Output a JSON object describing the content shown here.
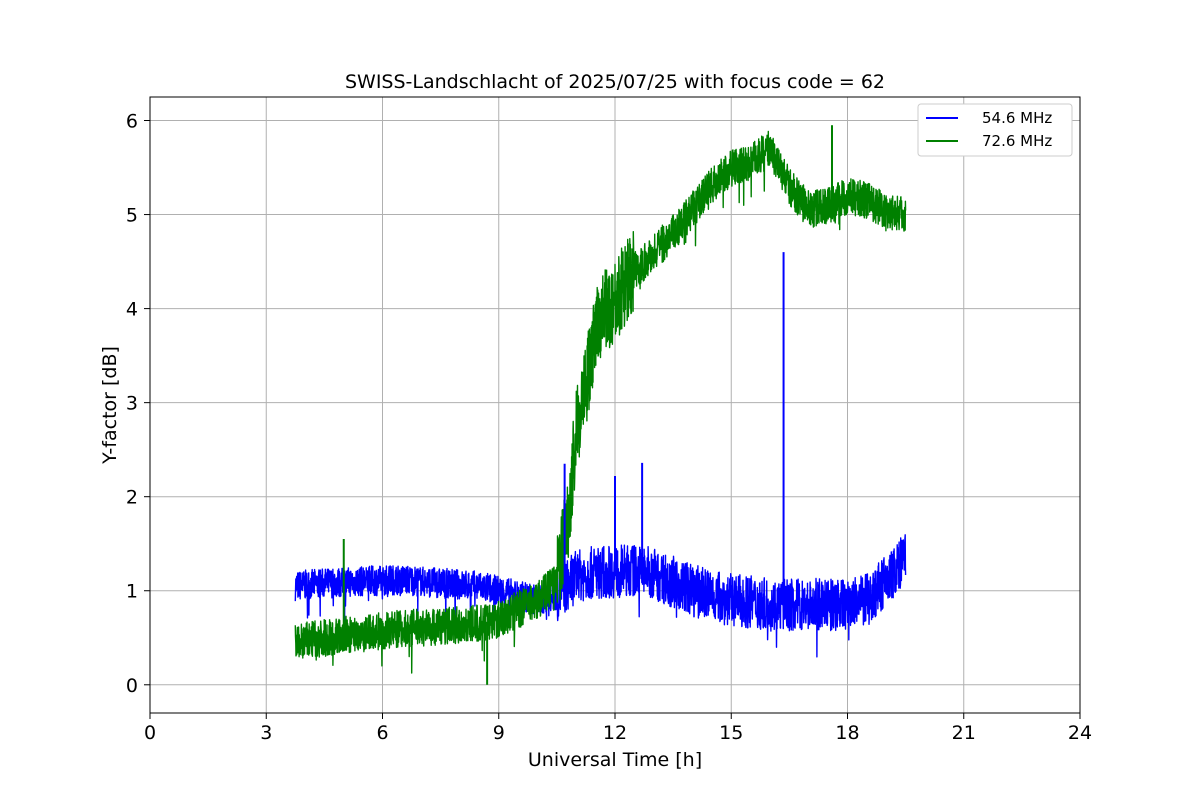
{
  "chart_data": {
    "type": "line",
    "title": "SWISS-Landschlacht of 2025/07/25 with focus code = 62",
    "xlabel": "Universal Time [h]",
    "ylabel": "Y-factor [dB]",
    "xlim": [
      0,
      24
    ],
    "ylim": [
      -0.3,
      6.25
    ],
    "xticks": [
      0,
      3,
      6,
      9,
      12,
      15,
      18,
      21,
      24
    ],
    "yticks": [
      0,
      1,
      2,
      3,
      4,
      5,
      6
    ],
    "xtick_labels": [
      "0",
      "3",
      "6",
      "9",
      "12",
      "15",
      "18",
      "21",
      "24"
    ],
    "ytick_labels": [
      "0",
      "1",
      "2",
      "3",
      "4",
      "5",
      "6"
    ],
    "grid": true,
    "legend_position": "top-right",
    "series": [
      {
        "name": "54.6 MHz",
        "color": "#0000ff",
        "x": [
          3.75,
          4.5,
          5.5,
          6.5,
          7.5,
          8.5,
          9.0,
          9.5,
          10.0,
          10.5,
          11.0,
          11.5,
          12.0,
          12.5,
          13.0,
          13.5,
          14.0,
          14.5,
          15.0,
          15.5,
          16.0,
          16.5,
          17.0,
          17.5,
          18.0,
          18.5,
          19.0,
          19.5
        ],
        "y": [
          1.05,
          1.08,
          1.1,
          1.12,
          1.08,
          1.05,
          1.0,
          0.95,
          0.9,
          0.95,
          1.15,
          1.2,
          1.2,
          1.22,
          1.18,
          1.1,
          1.0,
          0.95,
          0.9,
          0.88,
          0.85,
          0.85,
          0.85,
          0.85,
          0.85,
          0.9,
          1.1,
          1.35
        ]
      },
      {
        "name": "72.6 MHz",
        "color": "#008000",
        "x": [
          3.75,
          4.5,
          5.5,
          6.5,
          7.5,
          8.5,
          9.0,
          9.5,
          10.0,
          10.5,
          10.8,
          11.0,
          11.3,
          11.6,
          12.0,
          12.5,
          13.0,
          13.5,
          14.0,
          14.5,
          15.0,
          15.5,
          16.0,
          16.5,
          17.0,
          17.5,
          18.0,
          18.5,
          19.0,
          19.5
        ],
        "y": [
          0.45,
          0.5,
          0.55,
          0.6,
          0.62,
          0.65,
          0.7,
          0.8,
          0.9,
          1.1,
          1.8,
          2.7,
          3.3,
          3.9,
          4.1,
          4.4,
          4.6,
          4.8,
          5.05,
          5.3,
          5.5,
          5.55,
          5.7,
          5.3,
          5.05,
          5.1,
          5.2,
          5.15,
          5.05,
          5.0
        ]
      }
    ],
    "spikes": [
      {
        "series": "54.6 MHz",
        "x": 10.7,
        "y": 2.35
      },
      {
        "series": "54.6 MHz",
        "x": 12.0,
        "y": 2.22
      },
      {
        "series": "54.6 MHz",
        "x": 12.7,
        "y": 2.36
      },
      {
        "series": "54.6 MHz",
        "x": 16.35,
        "y": 4.6
      },
      {
        "series": "72.6 MHz",
        "x": 5.0,
        "y": 1.55
      },
      {
        "series": "72.6 MHz",
        "x": 8.7,
        "y": 0.0
      },
      {
        "series": "72.6 MHz",
        "x": 17.6,
        "y": 5.95
      }
    ]
  }
}
